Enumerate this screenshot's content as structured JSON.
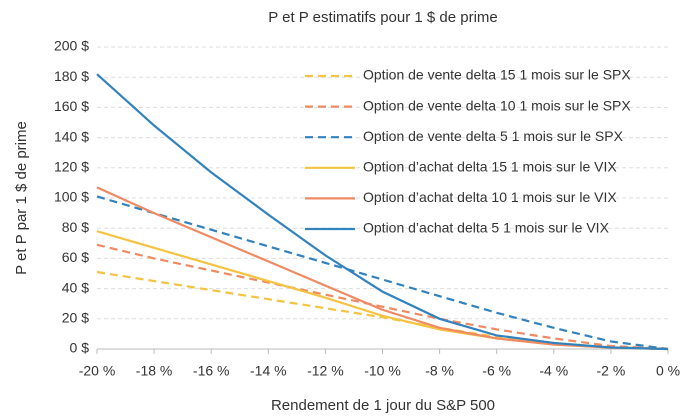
{
  "chart_data": {
    "type": "line",
    "title": "P et P estimatifs pour 1 $ de prime",
    "x_label": "Rendement de 1 jour du S&P 500",
    "y_label": "P et P par 1 $ de prime",
    "x": [
      -20,
      -18,
      -16,
      -14,
      -12,
      -10,
      -8,
      -6,
      -4,
      -2,
      0
    ],
    "xlim": [
      -20,
      0
    ],
    "xticks": [
      {
        "value": -20,
        "label": "-20 %"
      },
      {
        "value": -18,
        "label": "-18 %"
      },
      {
        "value": -16,
        "label": "-16 %"
      },
      {
        "value": -14,
        "label": "-14 %"
      },
      {
        "value": -12,
        "label": "-12 %"
      },
      {
        "value": -10,
        "label": "-10 %"
      },
      {
        "value": -8,
        "label": "-8 %"
      },
      {
        "value": -6,
        "label": "-6 %"
      },
      {
        "value": -4,
        "label": "-4 %"
      },
      {
        "value": -2,
        "label": "-2 %"
      },
      {
        "value": 0,
        "label": "0 %"
      }
    ],
    "ylim": [
      0,
      200
    ],
    "yticks": [
      {
        "value": 0,
        "label": "0 $"
      },
      {
        "value": 20,
        "label": "20 $"
      },
      {
        "value": 40,
        "label": "40 $"
      },
      {
        "value": 60,
        "label": "60 $"
      },
      {
        "value": 80,
        "label": "80 $"
      },
      {
        "value": 100,
        "label": "100 $"
      },
      {
        "value": 120,
        "label": "120 $"
      },
      {
        "value": 140,
        "label": "140 $"
      },
      {
        "value": 160,
        "label": "160 $"
      },
      {
        "value": 180,
        "label": "180 $"
      },
      {
        "value": 200,
        "label": "200 $"
      }
    ],
    "grid": true,
    "legend": "upper right",
    "series": [
      {
        "name": "Option de vente delta 15 1 mois sur le SPX",
        "color": "#f5c342",
        "dashed": true,
        "values": [
          51,
          45,
          39,
          33,
          27,
          21,
          14,
          8,
          4,
          1,
          0
        ]
      },
      {
        "name": "Option de vente delta 10 1 mois sur le SPX",
        "color": "#ef8a62",
        "dashed": true,
        "values": [
          69,
          60,
          52,
          44,
          36,
          28,
          20,
          13,
          7,
          2,
          0
        ]
      },
      {
        "name": "Option de vente delta 5 1 mois sur le SPX",
        "color": "#3182bd",
        "dashed": true,
        "values": [
          101,
          90,
          79,
          68,
          57,
          46,
          35,
          24,
          14,
          5,
          0
        ]
      },
      {
        "name": "Option d’achat delta 15 1 mois sur le VIX",
        "color": "#f5c342",
        "dashed": false,
        "values": [
          78,
          67,
          56,
          45,
          34,
          22,
          13,
          7,
          3,
          1,
          0
        ]
      },
      {
        "name": "Option d’achat delta 10 1 mois sur le VIX",
        "color": "#ef8a62",
        "dashed": false,
        "values": [
          107,
          90,
          74,
          58,
          42,
          26,
          14,
          7,
          3,
          1,
          0
        ]
      },
      {
        "name": "Option d’achat delta 5 1 mois sur le VIX",
        "color": "#3182bd",
        "dashed": false,
        "values": [
          182,
          148,
          117,
          89,
          62,
          38,
          20,
          9,
          4,
          1,
          0
        ]
      }
    ]
  }
}
